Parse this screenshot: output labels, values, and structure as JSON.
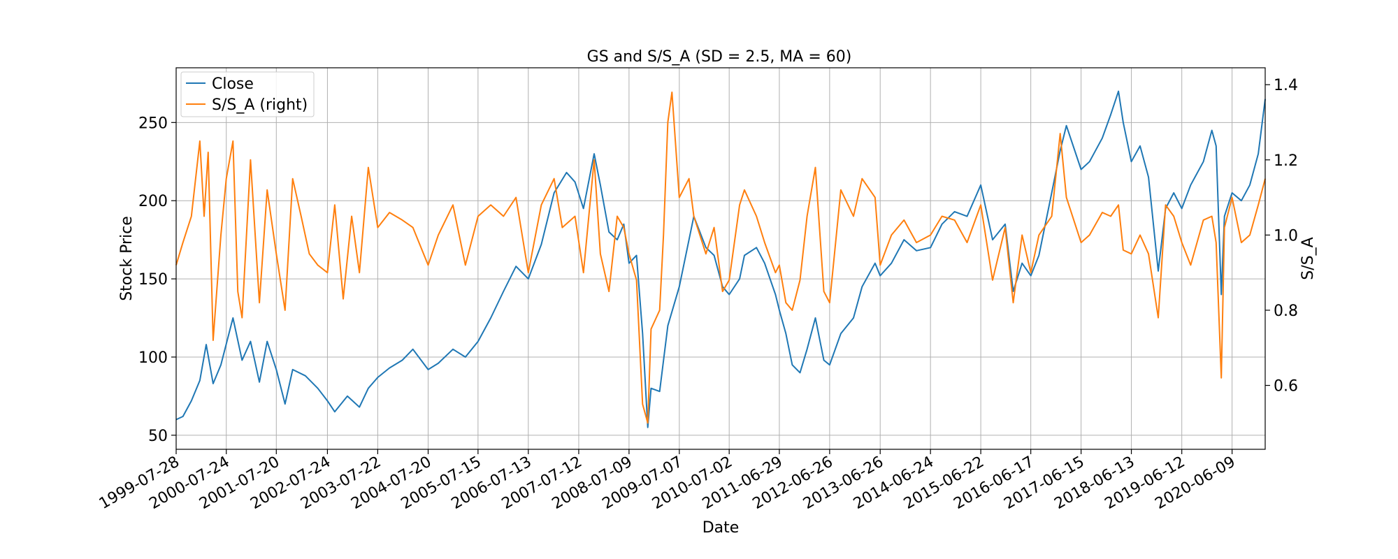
{
  "chart_data": {
    "type": "line",
    "title": "GS and S/S_A (SD = 2.5, MA = 60)",
    "xlabel": "Date",
    "ylabel": "Stock Price",
    "ylabel_right": "S/S_A",
    "x_range": [
      "1999-07-28",
      "2021-02-03"
    ],
    "ylim": [
      41,
      285
    ],
    "ylim_right": [
      0.43,
      1.445
    ],
    "grid": true,
    "legend_position": "top-left",
    "x_ticks": [
      "1999-07-28",
      "2000-07-24",
      "2001-07-20",
      "2002-07-24",
      "2003-07-22",
      "2004-07-20",
      "2005-07-15",
      "2006-07-13",
      "2007-07-12",
      "2008-07-09",
      "2009-07-07",
      "2010-07-02",
      "2011-06-29",
      "2012-06-26",
      "2013-06-26",
      "2014-06-24",
      "2015-06-22",
      "2016-06-17",
      "2017-06-15",
      "2018-06-13",
      "2019-06-12",
      "2020-06-09"
    ],
    "y_ticks": [
      50,
      100,
      150,
      200,
      250
    ],
    "y_ticks_right": [
      "0.6",
      "0.8",
      "1.0",
      "1.2",
      "1.4"
    ],
    "series": [
      {
        "name": "Close",
        "axis": "left",
        "color": "#1f77b4",
        "points": [
          [
            "1999-07-28",
            60
          ],
          [
            "1999-09-15",
            62
          ],
          [
            "1999-11-15",
            72
          ],
          [
            "2000-01-15",
            85
          ],
          [
            "2000-03-01",
            108
          ],
          [
            "2000-04-20",
            83
          ],
          [
            "2000-06-15",
            95
          ],
          [
            "2000-09-10",
            125
          ],
          [
            "2000-11-15",
            98
          ],
          [
            "2001-01-15",
            110
          ],
          [
            "2001-03-20",
            84
          ],
          [
            "2001-05-15",
            110
          ],
          [
            "2001-07-20",
            92
          ],
          [
            "2001-09-21",
            70
          ],
          [
            "2001-11-15",
            92
          ],
          [
            "2002-02-15",
            88
          ],
          [
            "2002-05-15",
            80
          ],
          [
            "2002-07-24",
            72
          ],
          [
            "2002-09-15",
            65
          ],
          [
            "2002-12-15",
            75
          ],
          [
            "2003-03-12",
            68
          ],
          [
            "2003-05-15",
            80
          ],
          [
            "2003-07-22",
            87
          ],
          [
            "2003-10-15",
            93
          ],
          [
            "2004-01-15",
            98
          ],
          [
            "2004-04-01",
            105
          ],
          [
            "2004-07-20",
            92
          ],
          [
            "2004-10-01",
            96
          ],
          [
            "2005-01-15",
            105
          ],
          [
            "2005-04-15",
            100
          ],
          [
            "2005-07-15",
            110
          ],
          [
            "2005-10-15",
            125
          ],
          [
            "2006-01-15",
            142
          ],
          [
            "2006-04-15",
            158
          ],
          [
            "2006-07-13",
            150
          ],
          [
            "2006-10-15",
            172
          ],
          [
            "2007-01-15",
            205
          ],
          [
            "2007-04-15",
            218
          ],
          [
            "2007-06-15",
            212
          ],
          [
            "2007-08-15",
            195
          ],
          [
            "2007-10-31",
            230
          ],
          [
            "2007-12-15",
            210
          ],
          [
            "2008-02-15",
            180
          ],
          [
            "2008-04-15",
            175
          ],
          [
            "2008-06-01",
            185
          ],
          [
            "2008-07-09",
            160
          ],
          [
            "2008-09-01",
            165
          ],
          [
            "2008-10-15",
            115
          ],
          [
            "2008-11-21",
            55
          ],
          [
            "2008-12-15",
            80
          ],
          [
            "2009-02-15",
            78
          ],
          [
            "2009-04-15",
            120
          ],
          [
            "2009-07-07",
            145
          ],
          [
            "2009-09-15",
            175
          ],
          [
            "2009-10-20",
            190
          ],
          [
            "2010-01-15",
            170
          ],
          [
            "2010-03-15",
            165
          ],
          [
            "2010-05-15",
            145
          ],
          [
            "2010-07-02",
            140
          ],
          [
            "2010-09-15",
            150
          ],
          [
            "2010-10-20",
            165
          ],
          [
            "2011-01-15",
            170
          ],
          [
            "2011-03-15",
            160
          ],
          [
            "2011-06-01",
            140
          ],
          [
            "2011-06-29",
            130
          ],
          [
            "2011-08-15",
            115
          ],
          [
            "2011-09-30",
            95
          ],
          [
            "2011-11-25",
            90
          ],
          [
            "2012-01-15",
            105
          ],
          [
            "2012-03-15",
            125
          ],
          [
            "2012-05-15",
            98
          ],
          [
            "2012-06-26",
            95
          ],
          [
            "2012-09-15",
            115
          ],
          [
            "2012-12-15",
            125
          ],
          [
            "2013-02-15",
            145
          ],
          [
            "2013-05-20",
            160
          ],
          [
            "2013-06-26",
            152
          ],
          [
            "2013-09-15",
            160
          ],
          [
            "2013-12-15",
            175
          ],
          [
            "2014-03-15",
            168
          ],
          [
            "2014-06-24",
            170
          ],
          [
            "2014-09-15",
            185
          ],
          [
            "2014-12-15",
            193
          ],
          [
            "2015-03-15",
            190
          ],
          [
            "2015-06-22",
            210
          ],
          [
            "2015-09-15",
            175
          ],
          [
            "2015-12-15",
            185
          ],
          [
            "2016-02-11",
            142
          ],
          [
            "2016-04-15",
            160
          ],
          [
            "2016-06-17",
            152
          ],
          [
            "2016-08-15",
            165
          ],
          [
            "2016-11-15",
            205
          ],
          [
            "2017-01-15",
            232
          ],
          [
            "2017-03-01",
            248
          ],
          [
            "2017-06-15",
            220
          ],
          [
            "2017-08-15",
            225
          ],
          [
            "2017-11-15",
            240
          ],
          [
            "2018-01-15",
            255
          ],
          [
            "2018-03-12",
            270
          ],
          [
            "2018-04-15",
            250
          ],
          [
            "2018-06-13",
            225
          ],
          [
            "2018-08-15",
            235
          ],
          [
            "2018-10-15",
            215
          ],
          [
            "2018-12-24",
            155
          ],
          [
            "2019-02-15",
            195
          ],
          [
            "2019-04-15",
            205
          ],
          [
            "2019-06-12",
            195
          ],
          [
            "2019-08-15",
            210
          ],
          [
            "2019-11-15",
            225
          ],
          [
            "2020-01-15",
            245
          ],
          [
            "2020-02-15",
            235
          ],
          [
            "2020-03-23",
            140
          ],
          [
            "2020-04-15",
            190
          ],
          [
            "2020-06-09",
            205
          ],
          [
            "2020-08-15",
            200
          ],
          [
            "2020-10-15",
            210
          ],
          [
            "2020-12-15",
            230
          ],
          [
            "2021-02-03",
            265
          ]
        ]
      },
      {
        "name": "S/S_A (right)",
        "axis": "right",
        "color": "#ff7f0e",
        "points": [
          [
            "1999-07-28",
            0.92
          ],
          [
            "1999-09-15",
            0.98
          ],
          [
            "1999-11-15",
            1.05
          ],
          [
            "2000-01-15",
            1.25
          ],
          [
            "2000-02-15",
            1.05
          ],
          [
            "2000-03-15",
            1.22
          ],
          [
            "2000-04-20",
            0.72
          ],
          [
            "2000-06-15",
            1.0
          ],
          [
            "2000-07-24",
            1.15
          ],
          [
            "2000-09-10",
            1.25
          ],
          [
            "2000-10-15",
            0.85
          ],
          [
            "2000-11-15",
            0.78
          ],
          [
            "2001-01-15",
            1.2
          ],
          [
            "2001-03-20",
            0.82
          ],
          [
            "2001-05-15",
            1.12
          ],
          [
            "2001-07-20",
            0.95
          ],
          [
            "2001-09-21",
            0.8
          ],
          [
            "2001-11-15",
            1.15
          ],
          [
            "2002-01-15",
            1.05
          ],
          [
            "2002-03-15",
            0.95
          ],
          [
            "2002-05-15",
            0.92
          ],
          [
            "2002-07-24",
            0.9
          ],
          [
            "2002-09-15",
            1.08
          ],
          [
            "2002-11-15",
            0.83
          ],
          [
            "2003-01-15",
            1.05
          ],
          [
            "2003-03-12",
            0.9
          ],
          [
            "2003-05-15",
            1.18
          ],
          [
            "2003-07-22",
            1.02
          ],
          [
            "2003-10-15",
            1.06
          ],
          [
            "2004-01-15",
            1.04
          ],
          [
            "2004-04-01",
            1.02
          ],
          [
            "2004-07-20",
            0.92
          ],
          [
            "2004-10-01",
            1.0
          ],
          [
            "2005-01-15",
            1.08
          ],
          [
            "2005-04-15",
            0.92
          ],
          [
            "2005-07-15",
            1.05
          ],
          [
            "2005-10-15",
            1.08
          ],
          [
            "2006-01-15",
            1.05
          ],
          [
            "2006-04-15",
            1.1
          ],
          [
            "2006-07-13",
            0.9
          ],
          [
            "2006-10-15",
            1.08
          ],
          [
            "2007-01-15",
            1.15
          ],
          [
            "2007-03-15",
            1.02
          ],
          [
            "2007-06-15",
            1.05
          ],
          [
            "2007-08-15",
            0.9
          ],
          [
            "2007-10-31",
            1.2
          ],
          [
            "2007-12-15",
            0.95
          ],
          [
            "2008-02-15",
            0.85
          ],
          [
            "2008-04-15",
            1.05
          ],
          [
            "2008-06-01",
            1.02
          ],
          [
            "2008-07-09",
            0.95
          ],
          [
            "2008-09-01",
            0.88
          ],
          [
            "2008-10-15",
            0.55
          ],
          [
            "2008-11-21",
            0.5
          ],
          [
            "2008-12-15",
            0.75
          ],
          [
            "2009-02-15",
            0.8
          ],
          [
            "2009-03-15",
            1.0
          ],
          [
            "2009-04-15",
            1.3
          ],
          [
            "2009-05-15",
            1.38
          ],
          [
            "2009-07-07",
            1.1
          ],
          [
            "2009-09-15",
            1.15
          ],
          [
            "2009-10-20",
            1.05
          ],
          [
            "2010-01-15",
            0.95
          ],
          [
            "2010-03-15",
            1.02
          ],
          [
            "2010-05-15",
            0.85
          ],
          [
            "2010-07-02",
            0.88
          ],
          [
            "2010-09-15",
            1.08
          ],
          [
            "2010-10-20",
            1.12
          ],
          [
            "2011-01-15",
            1.05
          ],
          [
            "2011-03-15",
            0.98
          ],
          [
            "2011-06-01",
            0.9
          ],
          [
            "2011-06-29",
            0.92
          ],
          [
            "2011-08-15",
            0.82
          ],
          [
            "2011-09-30",
            0.8
          ],
          [
            "2011-11-25",
            0.88
          ],
          [
            "2012-01-15",
            1.05
          ],
          [
            "2012-03-15",
            1.18
          ],
          [
            "2012-05-15",
            0.85
          ],
          [
            "2012-06-26",
            0.82
          ],
          [
            "2012-09-15",
            1.12
          ],
          [
            "2012-12-15",
            1.05
          ],
          [
            "2013-02-15",
            1.15
          ],
          [
            "2013-05-20",
            1.1
          ],
          [
            "2013-06-26",
            0.92
          ],
          [
            "2013-09-15",
            1.0
          ],
          [
            "2013-12-15",
            1.04
          ],
          [
            "2014-03-15",
            0.98
          ],
          [
            "2014-06-24",
            1.0
          ],
          [
            "2014-09-15",
            1.05
          ],
          [
            "2014-12-15",
            1.04
          ],
          [
            "2015-03-15",
            0.98
          ],
          [
            "2015-06-22",
            1.08
          ],
          [
            "2015-09-15",
            0.88
          ],
          [
            "2015-12-15",
            1.02
          ],
          [
            "2016-02-11",
            0.82
          ],
          [
            "2016-04-15",
            1.0
          ],
          [
            "2016-06-17",
            0.9
          ],
          [
            "2016-08-15",
            1.0
          ],
          [
            "2016-11-15",
            1.05
          ],
          [
            "2017-01-15",
            1.27
          ],
          [
            "2017-03-01",
            1.1
          ],
          [
            "2017-06-15",
            0.98
          ],
          [
            "2017-08-15",
            1.0
          ],
          [
            "2017-11-15",
            1.06
          ],
          [
            "2018-01-15",
            1.05
          ],
          [
            "2018-03-12",
            1.08
          ],
          [
            "2018-04-15",
            0.96
          ],
          [
            "2018-06-13",
            0.95
          ],
          [
            "2018-08-15",
            1.0
          ],
          [
            "2018-10-15",
            0.95
          ],
          [
            "2018-12-24",
            0.78
          ],
          [
            "2019-02-15",
            1.08
          ],
          [
            "2019-04-15",
            1.05
          ],
          [
            "2019-06-12",
            0.98
          ],
          [
            "2019-08-15",
            0.92
          ],
          [
            "2019-11-15",
            1.04
          ],
          [
            "2020-01-15",
            1.05
          ],
          [
            "2020-02-15",
            0.98
          ],
          [
            "2020-03-23",
            0.62
          ],
          [
            "2020-04-15",
            1.02
          ],
          [
            "2020-06-09",
            1.1
          ],
          [
            "2020-08-15",
            0.98
          ],
          [
            "2020-10-15",
            1.0
          ],
          [
            "2020-12-15",
            1.08
          ],
          [
            "2021-02-03",
            1.15
          ]
        ]
      }
    ]
  }
}
